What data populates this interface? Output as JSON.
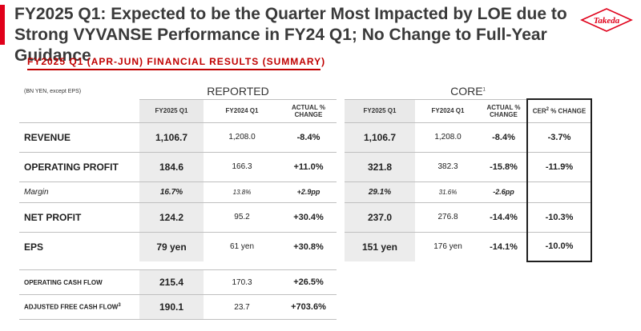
{
  "title": {
    "line1": "FY2025 Q1: Expected to be the Quarter Most Impacted by LOE due to",
    "line2": "Strong VYVANSE Performance in FY24 Q1; No Change to Full-Year Guidance"
  },
  "logo": {
    "text": "Takeda",
    "color": "#e0001a"
  },
  "section_title": "FY2025 Q1 (APR-JUN) FINANCIAL RESULTS (SUMMARY)",
  "units_note": "(BN YEN, except EPS)",
  "reported": {
    "header": "REPORTED",
    "columns": [
      "FY2025 Q1",
      "FY2024 Q1",
      "ACTUAL % CHANGE"
    ],
    "rows": [
      {
        "label": "REVENUE",
        "values": [
          "1,106.7",
          "1,208.0",
          "-8.4%"
        ]
      },
      {
        "label": "OPERATING PROFIT",
        "values": [
          "184.6",
          "166.3",
          "+11.0%"
        ]
      },
      {
        "label": "Margin",
        "values": [
          "16.7%",
          "13.8%",
          "+2.9pp"
        ]
      },
      {
        "label": "NET PROFIT",
        "values": [
          "124.2",
          "95.2",
          "+30.4%"
        ]
      },
      {
        "label": "EPS",
        "values": [
          "79 yen",
          "61 yen",
          "+30.8%"
        ]
      }
    ]
  },
  "cashflow": {
    "rows": [
      {
        "label": "OPERATING CASH FLOW",
        "values": [
          "215.4",
          "170.3",
          "+26.5%"
        ]
      },
      {
        "label": "ADJUSTED FREE CASH FLOW",
        "sup": "3",
        "values": [
          "190.1",
          "23.7",
          "+703.6%"
        ]
      }
    ]
  },
  "core": {
    "header": "CORE",
    "header_sup": "1",
    "columns": [
      "FY2025 Q1",
      "FY2024 Q1",
      "ACTUAL % CHANGE"
    ],
    "cer_column": {
      "prefix": "CER",
      "sup": "2",
      "suffix": " % CHANGE"
    },
    "rows": [
      {
        "values": [
          "1,106.7",
          "1,208.0",
          "-8.4%"
        ],
        "cer": "-3.7%"
      },
      {
        "values": [
          "321.8",
          "382.3",
          "-15.8%"
        ],
        "cer": "-11.9%"
      },
      {
        "values": [
          "29.1%",
          "31.6%",
          "-2.6pp"
        ],
        "cer": ""
      },
      {
        "values": [
          "237.0",
          "276.8",
          "-14.4%"
        ],
        "cer": "-10.3%"
      },
      {
        "values": [
          "151 yen",
          "176 yen",
          "-14.1%"
        ],
        "cer": "-10.0%"
      }
    ]
  }
}
